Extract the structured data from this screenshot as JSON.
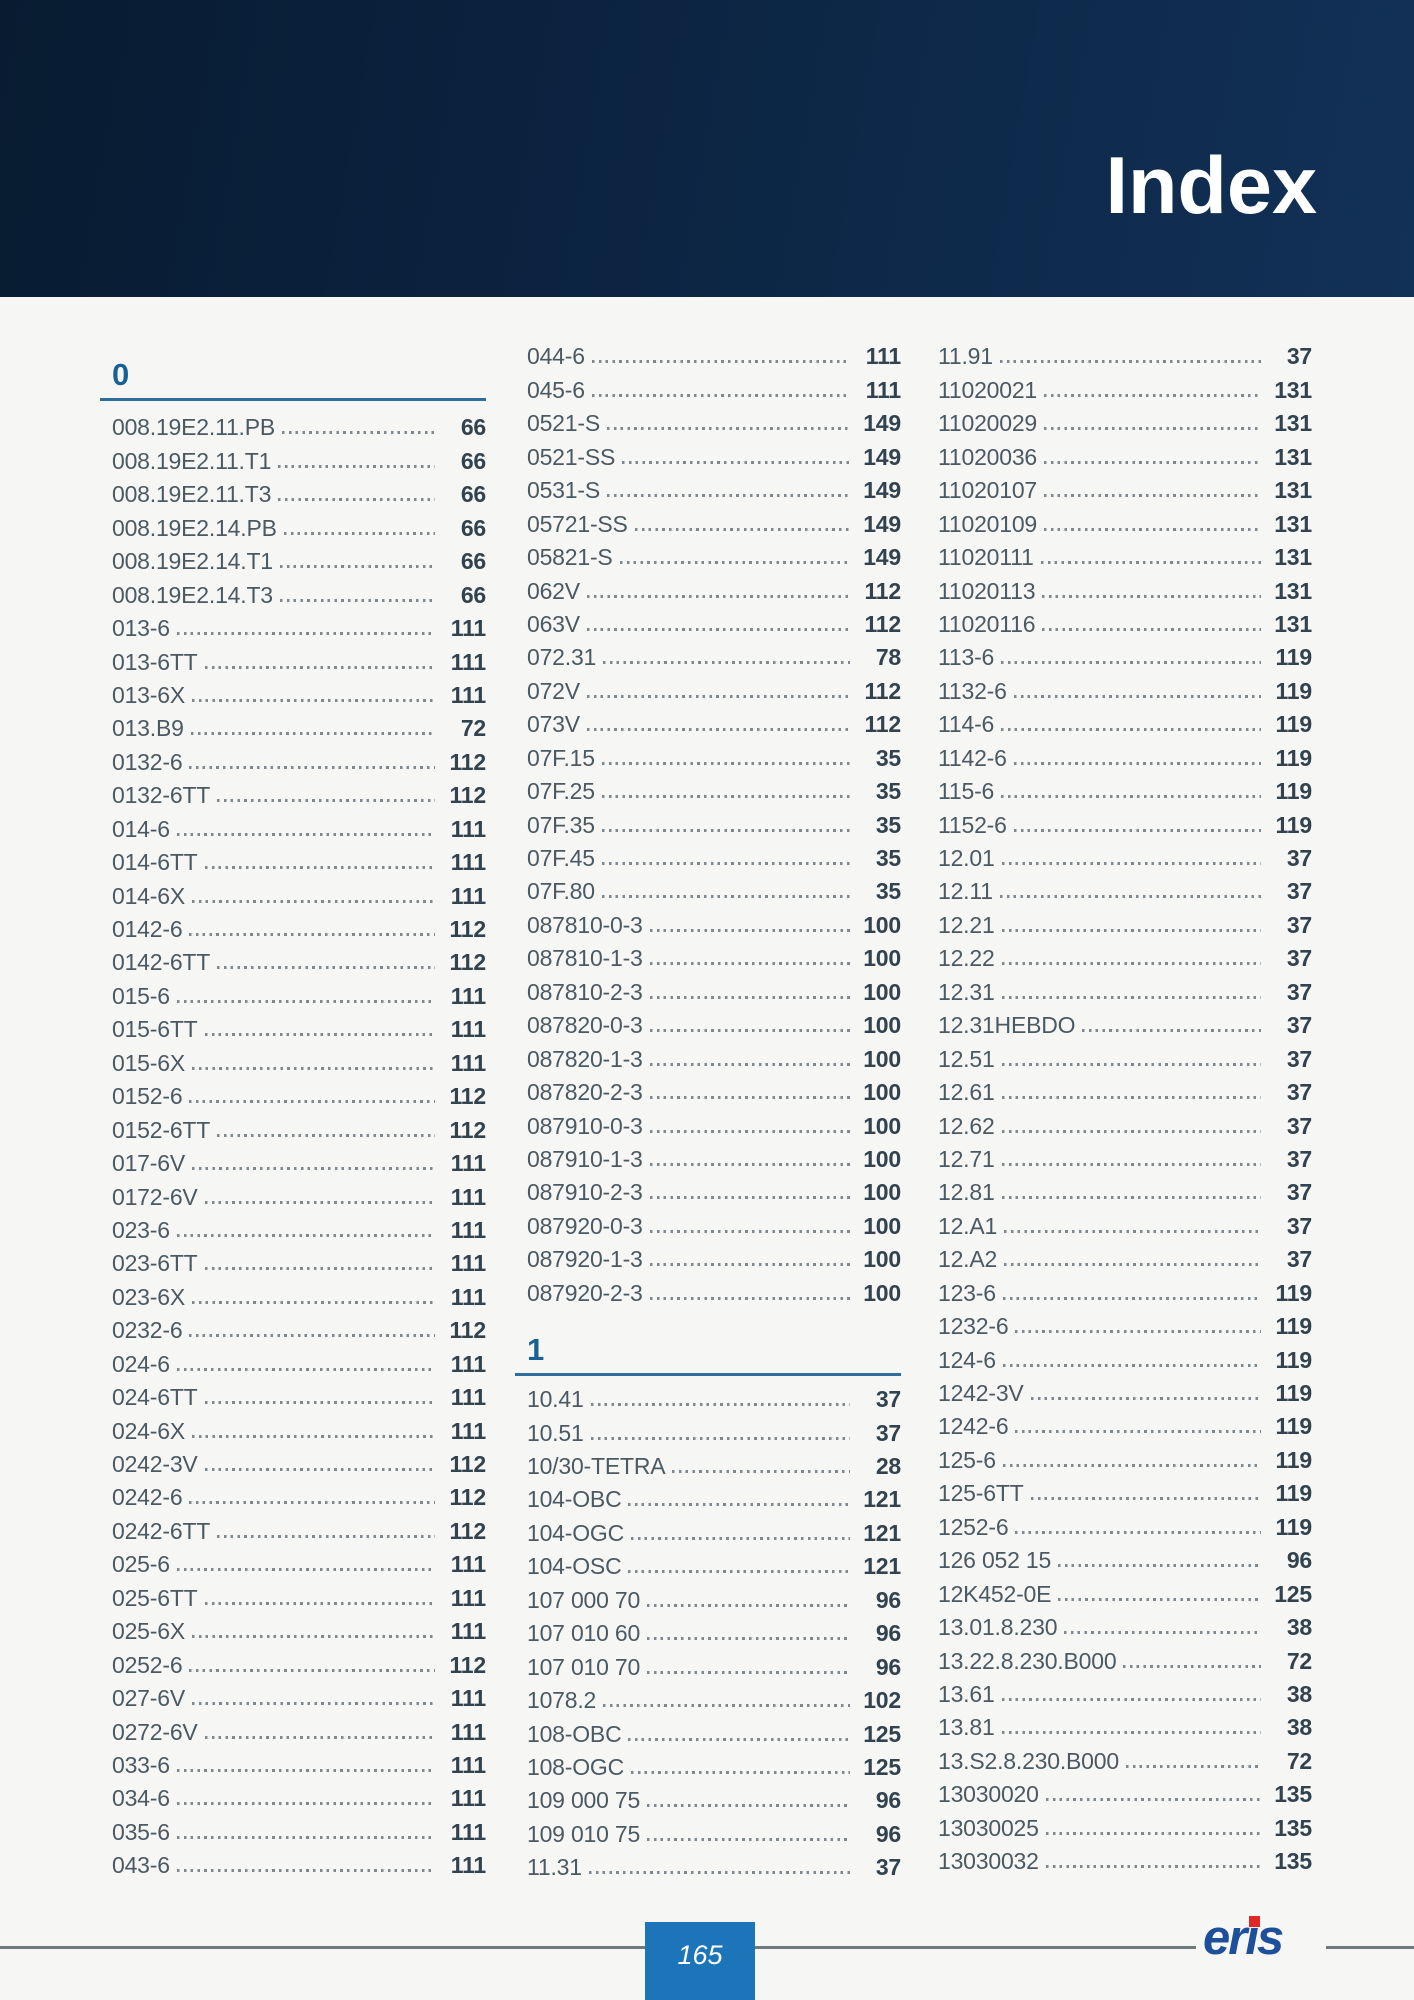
{
  "header": {
    "title": "Index"
  },
  "colors": {
    "header_bg": "#0c2440",
    "section_blue": "#1a6193",
    "rule_blue": "#2e6d9c",
    "entry_text": "#4a5962",
    "page_number_text": "#32434f",
    "page_tab_blue": "#1c74b9",
    "logo_blue": "#1e4f9b",
    "logo_dot_red": "#e12828",
    "footer_line_gray": "#6e7a7c"
  },
  "columns": [
    {
      "blocks": [
        {
          "section": "0",
          "variant": "first"
        },
        {
          "label": "008.19E2.11.PB",
          "page": "66"
        },
        {
          "label": "008.19E2.11.T1",
          "page": "66"
        },
        {
          "label": "008.19E2.11.T3",
          "page": "66"
        },
        {
          "label": "008.19E2.14.PB",
          "page": "66"
        },
        {
          "label": "008.19E2.14.T1",
          "page": "66"
        },
        {
          "label": "008.19E2.14.T3",
          "page": "66"
        },
        {
          "label": "013-6",
          "page": "111"
        },
        {
          "label": "013-6TT",
          "page": "111"
        },
        {
          "label": "013-6X",
          "page": "111"
        },
        {
          "label": "013.B9",
          "page": "72"
        },
        {
          "label": "0132-6",
          "page": "112"
        },
        {
          "label": "0132-6TT",
          "page": "112"
        },
        {
          "label": "014-6",
          "page": "111"
        },
        {
          "label": "014-6TT",
          "page": "111"
        },
        {
          "label": "014-6X",
          "page": "111"
        },
        {
          "label": "0142-6",
          "page": "112"
        },
        {
          "label": "0142-6TT",
          "page": "112"
        },
        {
          "label": "015-6",
          "page": "111"
        },
        {
          "label": "015-6TT",
          "page": "111"
        },
        {
          "label": "015-6X",
          "page": "111"
        },
        {
          "label": "0152-6",
          "page": "112"
        },
        {
          "label": "0152-6TT",
          "page": "112"
        },
        {
          "label": "017-6V",
          "page": "111"
        },
        {
          "label": "0172-6V",
          "page": "111"
        },
        {
          "label": "023-6",
          "page": "111"
        },
        {
          "label": "023-6TT",
          "page": "111"
        },
        {
          "label": "023-6X",
          "page": "111"
        },
        {
          "label": "0232-6",
          "page": "112"
        },
        {
          "label": "024-6",
          "page": "111"
        },
        {
          "label": "024-6TT",
          "page": "111"
        },
        {
          "label": "024-6X",
          "page": "111"
        },
        {
          "label": "0242-3V",
          "page": "112"
        },
        {
          "label": "0242-6",
          "page": "112"
        },
        {
          "label": "0242-6TT",
          "page": "112"
        },
        {
          "label": "025-6",
          "page": "111"
        },
        {
          "label": "025-6TT",
          "page": "111"
        },
        {
          "label": "025-6X",
          "page": "111"
        },
        {
          "label": "0252-6",
          "page": "112"
        },
        {
          "label": "027-6V",
          "page": "111"
        },
        {
          "label": "0272-6V",
          "page": "111"
        },
        {
          "label": "033-6",
          "page": "111"
        },
        {
          "label": "034-6",
          "page": "111"
        },
        {
          "label": "035-6",
          "page": "111"
        },
        {
          "label": "043-6",
          "page": "111"
        }
      ]
    },
    {
      "blocks": [
        {
          "label": "044-6",
          "page": "111"
        },
        {
          "label": "045-6",
          "page": "111"
        },
        {
          "label": "0521-S",
          "page": "149"
        },
        {
          "label": "0521-SS",
          "page": "149"
        },
        {
          "label": "0531-S",
          "page": "149"
        },
        {
          "label": "05721-SS",
          "page": "149"
        },
        {
          "label": "05821-S",
          "page": "149"
        },
        {
          "label": "062V",
          "page": "112"
        },
        {
          "label": "063V",
          "page": "112"
        },
        {
          "label": "072.31",
          "page": "78"
        },
        {
          "label": "072V",
          "page": "112"
        },
        {
          "label": "073V",
          "page": "112"
        },
        {
          "label": "07F.15",
          "page": "35"
        },
        {
          "label": "07F.25",
          "page": "35"
        },
        {
          "label": "07F.35",
          "page": "35"
        },
        {
          "label": "07F.45",
          "page": "35"
        },
        {
          "label": "07F.80",
          "page": "35"
        },
        {
          "label": "087810-0-3",
          "page": "100"
        },
        {
          "label": "087810-1-3",
          "page": "100"
        },
        {
          "label": "087810-2-3",
          "page": "100"
        },
        {
          "label": "087820-0-3",
          "page": "100"
        },
        {
          "label": "087820-1-3",
          "page": "100"
        },
        {
          "label": "087820-2-3",
          "page": "100"
        },
        {
          "label": "087910-0-3",
          "page": "100"
        },
        {
          "label": "087910-1-3",
          "page": "100"
        },
        {
          "label": "087910-2-3",
          "page": "100"
        },
        {
          "label": "087920-0-3",
          "page": "100"
        },
        {
          "label": "087920-1-3",
          "page": "100"
        },
        {
          "label": "087920-2-3",
          "page": "100"
        },
        {
          "section": "1",
          "variant": "mid"
        },
        {
          "label": "10.41",
          "page": "37"
        },
        {
          "label": "10.51",
          "page": "37"
        },
        {
          "label": "10/30-TETRA",
          "page": "28"
        },
        {
          "label": "104-OBC",
          "page": "121"
        },
        {
          "label": "104-OGC",
          "page": "121"
        },
        {
          "label": "104-OSC",
          "page": "121"
        },
        {
          "label": "107 000 70",
          "page": "96"
        },
        {
          "label": "107 010 60",
          "page": "96"
        },
        {
          "label": "107 010 70",
          "page": "96"
        },
        {
          "label": "1078.2",
          "page": "102"
        },
        {
          "label": "108-OBC",
          "page": "125"
        },
        {
          "label": "108-OGC",
          "page": "125"
        },
        {
          "label": "109 000 75",
          "page": "96"
        },
        {
          "label": "109 010 75",
          "page": "96"
        },
        {
          "label": "11.31",
          "page": "37"
        }
      ]
    },
    {
      "blocks": [
        {
          "label": "11.91",
          "page": "37"
        },
        {
          "label": "11020021",
          "page": "131"
        },
        {
          "label": "11020029",
          "page": "131"
        },
        {
          "label": "11020036",
          "page": "131"
        },
        {
          "label": "11020107",
          "page": "131"
        },
        {
          "label": "11020109",
          "page": "131"
        },
        {
          "label": "11020111",
          "page": "131"
        },
        {
          "label": "11020113",
          "page": "131"
        },
        {
          "label": "11020116",
          "page": "131"
        },
        {
          "label": "113-6",
          "page": "119"
        },
        {
          "label": "1132-6",
          "page": "119"
        },
        {
          "label": "114-6",
          "page": "119"
        },
        {
          "label": "1142-6",
          "page": "119"
        },
        {
          "label": "115-6",
          "page": "119"
        },
        {
          "label": "1152-6",
          "page": "119"
        },
        {
          "label": "12.01",
          "page": "37"
        },
        {
          "label": "12.11",
          "page": "37"
        },
        {
          "label": "12.21",
          "page": "37"
        },
        {
          "label": "12.22",
          "page": "37"
        },
        {
          "label": "12.31",
          "page": "37"
        },
        {
          "label": "12.31HEBDO",
          "page": "37"
        },
        {
          "label": "12.51",
          "page": "37"
        },
        {
          "label": "12.61",
          "page": "37"
        },
        {
          "label": "12.62",
          "page": "37"
        },
        {
          "label": "12.71",
          "page": "37"
        },
        {
          "label": "12.81",
          "page": "37"
        },
        {
          "label": "12.A1",
          "page": "37"
        },
        {
          "label": "12.A2",
          "page": "37"
        },
        {
          "label": "123-6",
          "page": "119"
        },
        {
          "label": "1232-6",
          "page": "119"
        },
        {
          "label": "124-6",
          "page": "119"
        },
        {
          "label": "1242-3V",
          "page": "119"
        },
        {
          "label": "1242-6",
          "page": "119"
        },
        {
          "label": "125-6",
          "page": "119"
        },
        {
          "label": "125-6TT",
          "page": "119"
        },
        {
          "label": "1252-6",
          "page": "119"
        },
        {
          "label": "126 052 15",
          "page": "96"
        },
        {
          "label": "12K452-0E",
          "page": "125"
        },
        {
          "label": "13.01.8.230",
          "page": "38"
        },
        {
          "label": "13.22.8.230.B000",
          "page": "72"
        },
        {
          "label": "13.61",
          "page": "38"
        },
        {
          "label": "13.81",
          "page": "38"
        },
        {
          "label": "13.S2.8.230.B000",
          "page": "72"
        },
        {
          "label": "13030020",
          "page": "135"
        },
        {
          "label": "13030025",
          "page": "135"
        },
        {
          "label": "13030032",
          "page": "135"
        }
      ]
    }
  ],
  "footer": {
    "page_number": "165",
    "logo": {
      "text": "eris"
    }
  }
}
